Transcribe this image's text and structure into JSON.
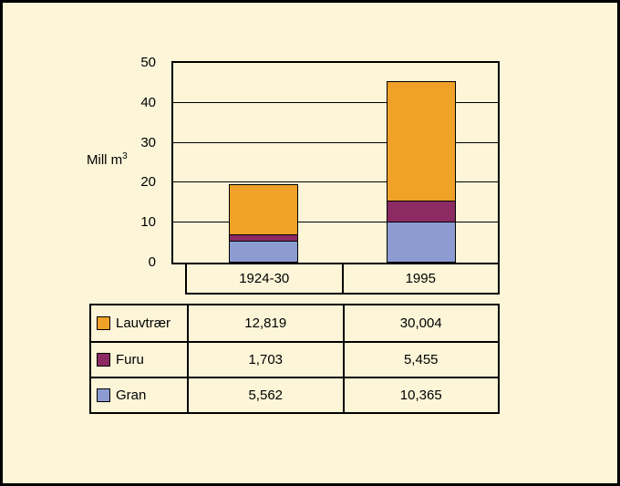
{
  "chart_data": {
    "type": "bar",
    "stacked": true,
    "title": "",
    "ylabel_base": "Mill m",
    "ylabel_sup": "3",
    "ylim": [
      0,
      50
    ],
    "yticks": [
      0,
      10,
      20,
      30,
      40,
      50
    ],
    "grid": true,
    "legend_position": "table-left",
    "categories": [
      "1924-30",
      "1995"
    ],
    "series": [
      {
        "name": "Lauvtrær",
        "color": "#EFA227",
        "values": [
          12.819,
          30.004
        ],
        "labels": [
          "12,819",
          "30,004"
        ]
      },
      {
        "name": "Furu",
        "color": "#8C2A63",
        "values": [
          1.703,
          5.455
        ],
        "labels": [
          "1,703",
          "5,455"
        ]
      },
      {
        "name": "Gran",
        "color": "#8C9CD2",
        "values": [
          5.562,
          10.365
        ],
        "labels": [
          "5,562",
          "10,365"
        ]
      }
    ]
  },
  "colors": {
    "background": "#FCF5D8",
    "frame_border": "#000000"
  }
}
